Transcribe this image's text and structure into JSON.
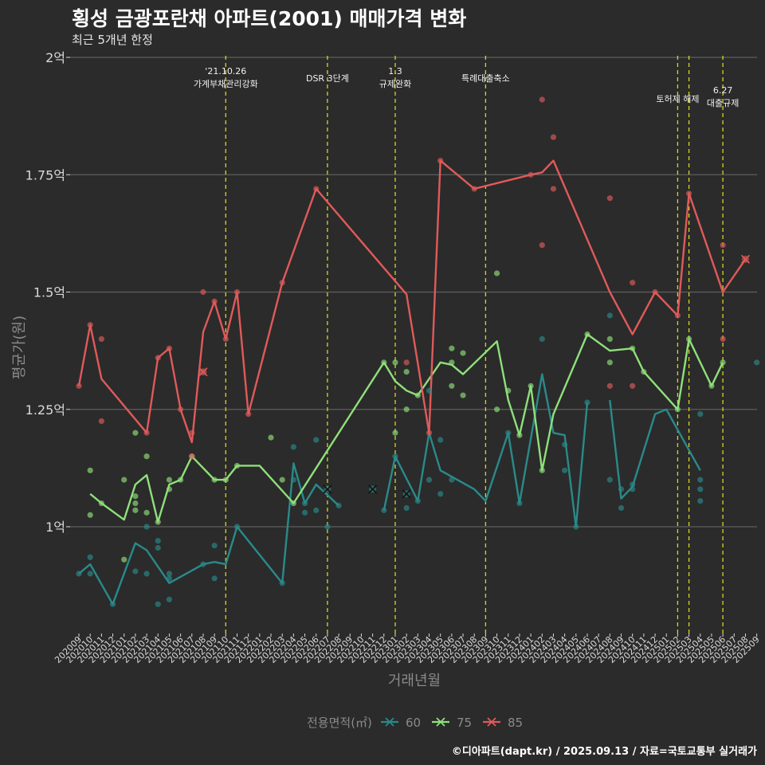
{
  "title": "횡성 금광포란채 아파트(2001) 매매가격 변화",
  "subtitle": "최근 5개년 한정",
  "caption": "©디아파트(dapt.kr) / 2025.09.13 / 자료=국토교통부 실거래가",
  "colors": {
    "background": "#2b2b2b",
    "grid": "#5e5e5e",
    "text": "#d9d9d9",
    "axis_title": "#8a8a8a",
    "event_line": "#d6d620"
  },
  "chart_data": {
    "type": "line",
    "xlabel": "거래년월",
    "ylabel": "평균가(원)",
    "y_unit": "억",
    "ylim": [
      0.77,
      2.0
    ],
    "yticks": [
      {
        "value": 1.0,
        "label": "1억"
      },
      {
        "value": 1.25,
        "label": "1.25억"
      },
      {
        "value": 1.5,
        "label": "1.5억"
      },
      {
        "value": 1.75,
        "label": "1.75억"
      },
      {
        "value": 2.0,
        "label": "2억"
      }
    ],
    "categories": [
      "202009",
      "202010",
      "202011",
      "202012",
      "202101",
      "202102",
      "202103",
      "202104",
      "202105",
      "202106",
      "202107",
      "202108",
      "202109",
      "202110",
      "202111",
      "202112",
      "202201",
      "202202",
      "202203",
      "202204",
      "202205",
      "202206",
      "202207",
      "202208",
      "202209",
      "202210",
      "202211",
      "202212",
      "202301",
      "202302",
      "202303",
      "202304",
      "202305",
      "202306",
      "202307",
      "202308",
      "202309",
      "202310",
      "202311",
      "202312",
      "202401",
      "202402",
      "202403",
      "202404",
      "202405",
      "202406",
      "202407",
      "202408",
      "202409",
      "202410",
      "202411",
      "202412",
      "202501",
      "202502",
      "202503",
      "202504",
      "202505",
      "202506",
      "202507",
      "202508",
      "202509"
    ],
    "legend": {
      "title": "전용면적(㎡)",
      "position": "bottom"
    },
    "events": [
      {
        "x": "202110",
        "labels": [
          "'21.10.26",
          "가계부채관리강화"
        ],
        "level": 0
      },
      {
        "x": "202207",
        "labels": [
          "DSR 3단계"
        ],
        "level": 2
      },
      {
        "x": "202301",
        "labels": [
          "1.3",
          "규제완화"
        ],
        "level": 0
      },
      {
        "x": "202309",
        "labels": [
          "특례대출축소"
        ],
        "level": 2
      },
      {
        "x": "202502",
        "labels": [
          "토허제 해제"
        ],
        "level": 1
      },
      {
        "x": "202503",
        "labels": [],
        "level": 1
      },
      {
        "x": "202506",
        "labels": [
          "6.27",
          "대출규제"
        ],
        "level": 3
      }
    ],
    "series": [
      {
        "name": "60",
        "color": "#2a8a8a",
        "line": [
          [
            "202009",
            0.9
          ],
          [
            "202010",
            0.92
          ],
          [
            "202012",
            0.835
          ],
          [
            "202102",
            0.965
          ],
          [
            "202103",
            0.95
          ],
          [
            "202105",
            0.88
          ],
          [
            "202108",
            0.92
          ],
          [
            "202109",
            0.925
          ],
          [
            "202110",
            0.92
          ],
          [
            "202111",
            1.0
          ],
          [
            "202203",
            0.88
          ],
          [
            "202204",
            1.135
          ],
          [
            "202205",
            1.05
          ],
          [
            "202206",
            1.09
          ],
          [
            "202208",
            1.045
          ],
          null,
          [
            "202212",
            1.035
          ],
          [
            "202301",
            1.15
          ],
          [
            "202303",
            1.055
          ],
          [
            "202304",
            1.2
          ],
          [
            "202305",
            1.12
          ],
          [
            "202308",
            1.08
          ],
          [
            "202309",
            1.055
          ],
          [
            "202311",
            1.2
          ],
          [
            "202312",
            1.05
          ],
          [
            "202402",
            1.325
          ],
          [
            "202403",
            1.2
          ],
          [
            "202404",
            1.195
          ],
          [
            "202405",
            1.0
          ],
          [
            "202406",
            1.265
          ],
          null,
          [
            "202408",
            1.27
          ],
          [
            "202409",
            1.06
          ],
          [
            "202410",
            1.085
          ],
          [
            "202412",
            1.24
          ],
          [
            "202501",
            1.25
          ],
          [
            "202504",
            1.12
          ]
        ],
        "points": [
          [
            "202009",
            0.9
          ],
          [
            "202010",
            0.935
          ],
          [
            "202010",
            0.9
          ],
          [
            "202012",
            0.835
          ],
          [
            "202102",
            0.905
          ],
          [
            "202103",
            1.0
          ],
          [
            "202103",
            0.9
          ],
          [
            "202104",
            0.835
          ],
          [
            "202104",
            0.97
          ],
          [
            "202104",
            0.955
          ],
          [
            "202105",
            0.9
          ],
          [
            "202105",
            0.89
          ],
          [
            "202105",
            0.845
          ],
          [
            "202108",
            0.92
          ],
          [
            "202109",
            0.96
          ],
          [
            "202109",
            0.89
          ],
          [
            "202111",
            1.0
          ],
          [
            "202203",
            0.88
          ],
          [
            "202204",
            1.17
          ],
          [
            "202204",
            1.1
          ],
          [
            "202205",
            1.05
          ],
          [
            "202205",
            1.03
          ],
          [
            "202206",
            1.185
          ],
          [
            "202206",
            1.035
          ],
          [
            "202207",
            1.0
          ],
          [
            "202208",
            1.045
          ],
          [
            "202212",
            1.035
          ],
          [
            "202301",
            1.15
          ],
          [
            "202302",
            1.04
          ],
          [
            "202303",
            1.055
          ],
          [
            "202304",
            1.1
          ],
          [
            "202304",
            1.29
          ],
          [
            "202305",
            1.07
          ],
          [
            "202305",
            1.185
          ],
          [
            "202306",
            1.1
          ],
          [
            "202311",
            1.2
          ],
          [
            "202312",
            1.05
          ],
          [
            "202402",
            1.4
          ],
          [
            "202404",
            1.175
          ],
          [
            "202404",
            1.12
          ],
          [
            "202405",
            1.0
          ],
          [
            "202406",
            1.265
          ],
          [
            "202408",
            1.1
          ],
          [
            "202408",
            1.45
          ],
          [
            "202409",
            1.04
          ],
          [
            "202409",
            1.08
          ],
          [
            "202410",
            1.09
          ],
          [
            "202410",
            1.08
          ],
          [
            "202504",
            1.24
          ],
          [
            "202504",
            1.1
          ],
          [
            "202504",
            1.08
          ],
          [
            "202504",
            1.055
          ],
          [
            "202509",
            1.35
          ]
        ],
        "cancelled": [
          [
            "202207",
            1.08
          ],
          [
            "202211",
            1.08
          ],
          [
            "202302",
            1.07
          ]
        ]
      },
      {
        "name": "75",
        "color": "#8fe07a",
        "line": [
          [
            "202010",
            1.07
          ],
          [
            "202011",
            1.05
          ],
          [
            "202101",
            1.015
          ],
          [
            "202102",
            1.09
          ],
          [
            "202103",
            1.11
          ],
          [
            "202104",
            1.01
          ],
          [
            "202105",
            1.09
          ],
          [
            "202106",
            1.1
          ],
          [
            "202107",
            1.15
          ],
          [
            "202109",
            1.1
          ],
          [
            "202110",
            1.1
          ],
          [
            "202111",
            1.13
          ],
          [
            "202201",
            1.13
          ],
          [
            "202204",
            1.05
          ],
          [
            "202212",
            1.35
          ],
          [
            "202301",
            1.31
          ],
          [
            "202302",
            1.29
          ],
          [
            "202303",
            1.28
          ],
          [
            "202305",
            1.35
          ],
          [
            "202306",
            1.345
          ],
          [
            "202307",
            1.325
          ],
          [
            "202310",
            1.395
          ],
          [
            "202311",
            1.27
          ],
          [
            "202312",
            1.195
          ],
          [
            "202401",
            1.3
          ],
          [
            "202402",
            1.12
          ],
          [
            "202403",
            1.24
          ],
          [
            "202406",
            1.41
          ],
          [
            "202408",
            1.375
          ],
          [
            "202410",
            1.38
          ],
          [
            "202411",
            1.33
          ],
          [
            "202502",
            1.25
          ],
          [
            "202503",
            1.4
          ],
          [
            "202505",
            1.3
          ],
          [
            "202506",
            1.35
          ]
        ],
        "points": [
          [
            "202010",
            1.12
          ],
          [
            "202010",
            1.025
          ],
          [
            "202011",
            1.05
          ],
          [
            "202101",
            1.1
          ],
          [
            "202101",
            0.93
          ],
          [
            "202102",
            1.2
          ],
          [
            "202102",
            1.065
          ],
          [
            "202102",
            1.05
          ],
          [
            "202102",
            1.035
          ],
          [
            "202103",
            1.15
          ],
          [
            "202103",
            1.03
          ],
          [
            "202104",
            1.01
          ],
          [
            "202105",
            1.1
          ],
          [
            "202105",
            1.08
          ],
          [
            "202106",
            1.1
          ],
          [
            "202107",
            1.15
          ],
          [
            "202109",
            1.1
          ],
          [
            "202110",
            1.1
          ],
          [
            "202111",
            1.13
          ],
          [
            "202202",
            1.19
          ],
          [
            "202203",
            1.1
          ],
          [
            "202204",
            1.05
          ],
          [
            "202212",
            1.35
          ],
          [
            "202301",
            1.35
          ],
          [
            "202301",
            1.2
          ],
          [
            "202302",
            1.33
          ],
          [
            "202302",
            1.25
          ],
          [
            "202303",
            1.28
          ],
          [
            "202306",
            1.38
          ],
          [
            "202306",
            1.35
          ],
          [
            "202306",
            1.3
          ],
          [
            "202307",
            1.37
          ],
          [
            "202307",
            1.28
          ],
          [
            "202310",
            1.54
          ],
          [
            "202310",
            1.25
          ],
          [
            "202311",
            1.29
          ],
          [
            "202312",
            1.195
          ],
          [
            "202401",
            1.3
          ],
          [
            "202402",
            1.12
          ],
          [
            "202406",
            1.41
          ],
          [
            "202408",
            1.4
          ],
          [
            "202408",
            1.35
          ],
          [
            "202410",
            1.38
          ],
          [
            "202411",
            1.33
          ],
          [
            "202502",
            1.25
          ],
          [
            "202503",
            1.4
          ],
          [
            "202505",
            1.3
          ],
          [
            "202506",
            1.35
          ]
        ],
        "cancelled": []
      },
      {
        "name": "85",
        "color": "#e05a5a",
        "line": [
          [
            "202009",
            1.3
          ],
          [
            "202010",
            1.43
          ],
          [
            "202011",
            1.315
          ],
          [
            "202103",
            1.2
          ],
          [
            "202104",
            1.36
          ],
          [
            "202105",
            1.38
          ],
          [
            "202106",
            1.25
          ],
          [
            "202107",
            1.18
          ],
          [
            "202108",
            1.415
          ],
          [
            "202109",
            1.48
          ],
          [
            "202110",
            1.4
          ],
          [
            "202111",
            1.5
          ],
          [
            "202112",
            1.24
          ],
          [
            "202203",
            1.52
          ],
          [
            "202206",
            1.72
          ],
          [
            "202302",
            1.495
          ],
          [
            "202304",
            1.2
          ],
          [
            "202305",
            1.78
          ],
          [
            "202308",
            1.72
          ],
          [
            "202401",
            1.75
          ],
          [
            "202402",
            1.755
          ],
          [
            "202403",
            1.78
          ],
          [
            "202408",
            1.5
          ],
          [
            "202410",
            1.41
          ],
          [
            "202412",
            1.5
          ],
          [
            "202502",
            1.45
          ],
          [
            "202503",
            1.71
          ],
          [
            "202506",
            1.5
          ],
          [
            "202508",
            1.57
          ]
        ],
        "points": [
          [
            "202009",
            1.3
          ],
          [
            "202010",
            1.43
          ],
          [
            "202011",
            1.4
          ],
          [
            "202011",
            1.225
          ],
          [
            "202103",
            1.2
          ],
          [
            "202104",
            1.36
          ],
          [
            "202105",
            1.38
          ],
          [
            "202106",
            1.25
          ],
          [
            "202107",
            1.2
          ],
          [
            "202107",
            1.15
          ],
          [
            "202108",
            1.5
          ],
          [
            "202109",
            1.48
          ],
          [
            "202110",
            1.4
          ],
          [
            "202111",
            1.5
          ],
          [
            "202112",
            1.24
          ],
          [
            "202203",
            1.52
          ],
          [
            "202206",
            1.72
          ],
          [
            "202302",
            1.35
          ],
          [
            "202304",
            1.2
          ],
          [
            "202305",
            1.78
          ],
          [
            "202308",
            1.72
          ],
          [
            "202401",
            1.75
          ],
          [
            "202402",
            1.91
          ],
          [
            "202402",
            1.6
          ],
          [
            "202403",
            1.83
          ],
          [
            "202403",
            1.72
          ],
          [
            "202408",
            1.7
          ],
          [
            "202408",
            1.3
          ],
          [
            "202410",
            1.52
          ],
          [
            "202410",
            1.3
          ],
          [
            "202412",
            1.5
          ],
          [
            "202502",
            1.45
          ],
          [
            "202503",
            1.71
          ],
          [
            "202506",
            1.6
          ],
          [
            "202506",
            1.4
          ]
        ],
        "cancelled": [
          [
            "202108",
            1.33
          ],
          [
            "202508",
            1.57
          ]
        ]
      }
    ]
  }
}
